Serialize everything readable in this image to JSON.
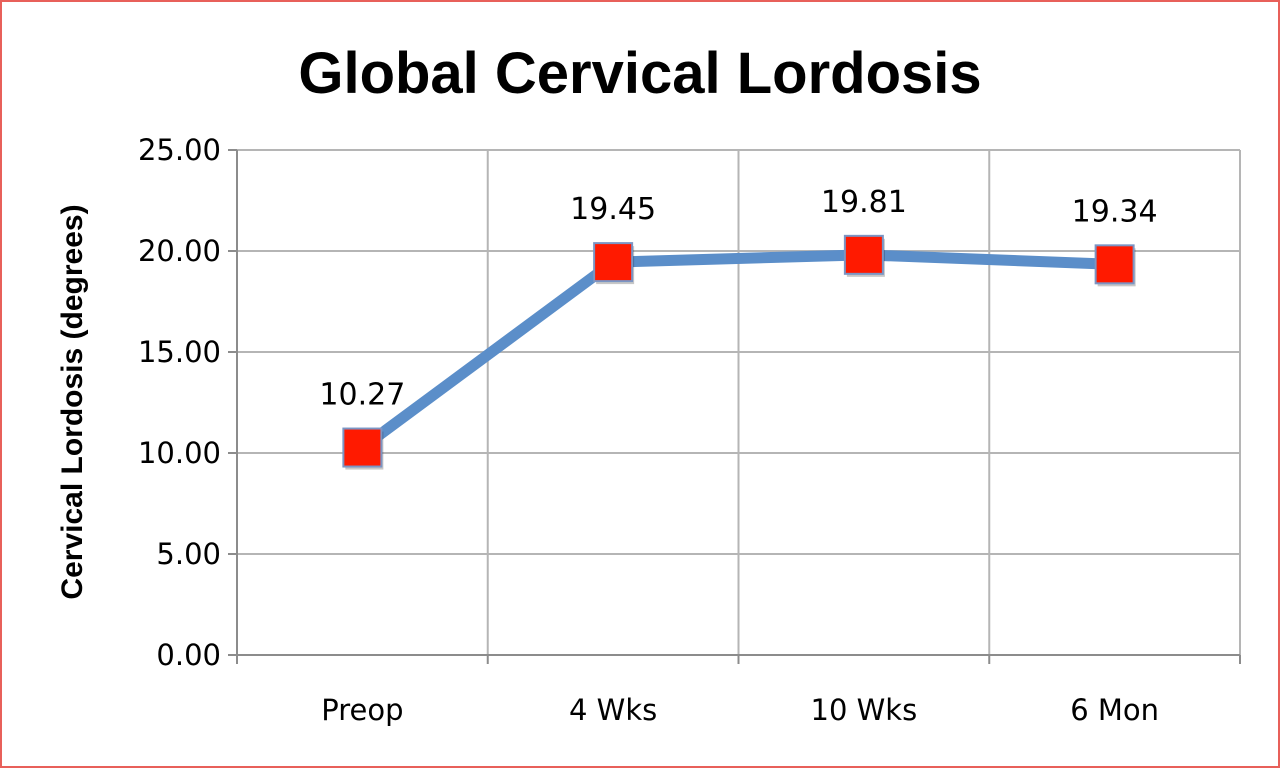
{
  "chart_data": {
    "type": "line",
    "title": "Global Cervical Lordosis",
    "xlabel": "",
    "ylabel": "Cervical Lordosis (degrees)",
    "categories": [
      "Preop",
      "4 Wks",
      "10 Wks",
      "6 Mon"
    ],
    "series": [
      {
        "values": [
          10.27,
          19.45,
          19.81,
          19.34
        ],
        "data_labels": [
          "10.27",
          "19.45",
          "19.81",
          "19.34"
        ],
        "line_color": "#5b8ec9",
        "marker_color": "#ff1a00",
        "marker": "square"
      }
    ],
    "ylim": [
      0,
      25
    ],
    "yticks": [
      "0.00",
      "5.00",
      "10.00",
      "15.00",
      "20.00",
      "25.00"
    ],
    "grid": true,
    "legend": "none"
  },
  "colors": {
    "frame_border": "#e8605a",
    "grid": "#b5b5b5",
    "axis": "#8c8c8c"
  }
}
